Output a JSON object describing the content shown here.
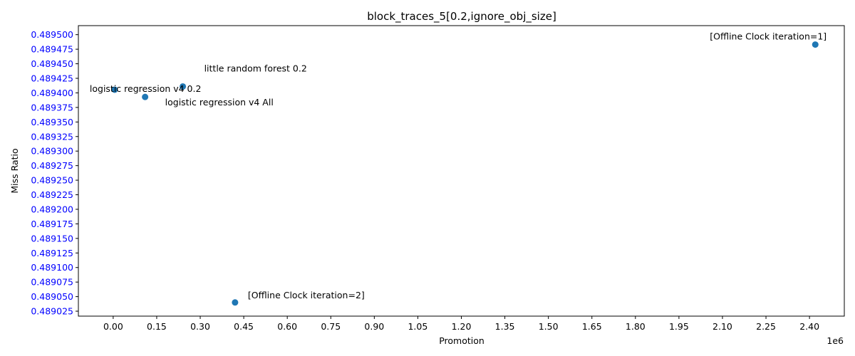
{
  "chart_data": {
    "type": "scatter",
    "title": "block_traces_5[0.2,ignore_obj_size]",
    "xlabel": "Promotion",
    "ylabel": "Miss Ratio",
    "x_offset_text": "1e6",
    "xlim": [
      -0.12,
      2.52
    ],
    "ylim": [
      0.4890165,
      0.4895155
    ],
    "xticks": [
      0.0,
      0.15,
      0.3,
      0.45,
      0.6,
      0.75,
      0.9,
      1.05,
      1.2,
      1.35,
      1.5,
      1.65,
      1.8,
      1.95,
      2.1,
      2.25,
      2.4
    ],
    "xtick_labels": [
      "0.00",
      "0.15",
      "0.30",
      "0.45",
      "0.60",
      "0.75",
      "0.90",
      "1.05",
      "1.20",
      "1.35",
      "1.50",
      "1.65",
      "1.80",
      "1.95",
      "2.10",
      "2.25",
      "2.40"
    ],
    "yticks": [
      0.489025,
      0.48905,
      0.489075,
      0.4891,
      0.489125,
      0.48915,
      0.489175,
      0.4892,
      0.489225,
      0.48925,
      0.489275,
      0.4893,
      0.489325,
      0.48935,
      0.489375,
      0.4894,
      0.489425,
      0.48945,
      0.489475,
      0.4895
    ],
    "ytick_labels": [
      "0.489025",
      "0.489050",
      "0.489075",
      "0.489100",
      "0.489125",
      "0.489150",
      "0.489175",
      "0.489200",
      "0.489225",
      "0.489250",
      "0.489275",
      "0.489300",
      "0.489325",
      "0.489350",
      "0.489375",
      "0.489400",
      "0.489425",
      "0.489450",
      "0.489475",
      "0.489500"
    ],
    "ytick_color": "#0000ff",
    "marker_color": "#1f77b4",
    "grid": false,
    "points": [
      {
        "x": 0.005,
        "y": 0.4894055,
        "label": "logistic regression v4 0.2"
      },
      {
        "x": 0.11,
        "y": 0.489393,
        "label": "logistic regression v4 All"
      },
      {
        "x": 0.24,
        "y": 0.489411,
        "label": "little random forest 0.2"
      },
      {
        "x": 0.42,
        "y": 0.48904,
        "label": "[Offline Clock iteration=2]"
      },
      {
        "x": 2.42,
        "y": 0.489483,
        "label": "[Offline Clock iteration=1]"
      }
    ]
  }
}
